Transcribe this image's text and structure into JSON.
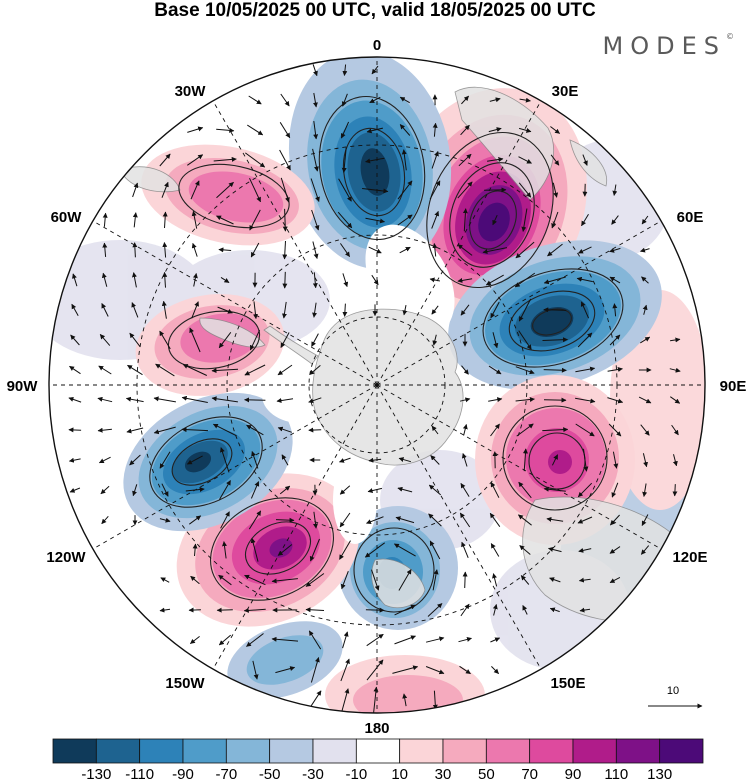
{
  "title": "Base 10/05/2025 00 UTC, valid 18/05/2025 00 UTC",
  "brand": "MODES",
  "brand_mark": "©",
  "longitudes": {
    "north": "0",
    "south": "180",
    "west": "90W",
    "east": "90E",
    "nw1": "30W",
    "nw2": "60W",
    "ne1": "30E",
    "ne2": "60E",
    "sw1": "120W",
    "sw2": "150W",
    "se1": "120E",
    "se2": "150E"
  },
  "vector_reference": "10",
  "colorbar": {
    "colors": [
      "#0f3a5a",
      "#1e6390",
      "#2d82b8",
      "#4f9cc9",
      "#84b6d8",
      "#b5c9e2",
      "#e2e1ee",
      "#ffffff",
      "#fbd5d8",
      "#f5aabe",
      "#ec78ae",
      "#de4a9e",
      "#b01c8a",
      "#7e1187",
      "#4c0a78"
    ],
    "labels": [
      "-130",
      "-110",
      "-90",
      "-70",
      "-50",
      "-30",
      "-10",
      "10",
      "30",
      "50",
      "70",
      "90",
      "110",
      "130"
    ]
  },
  "anomaly_centers": [
    {
      "name": "pos-30E",
      "sign": 1,
      "strength": 125
    },
    {
      "name": "neg-60E",
      "sign": -1,
      "strength": 120
    },
    {
      "name": "neg-0",
      "sign": -1,
      "strength": 110
    },
    {
      "name": "pos-100E",
      "sign": 1,
      "strength": 90
    },
    {
      "name": "neg-150E",
      "sign": -1,
      "strength": 70
    },
    {
      "name": "pos-130W",
      "sign": 1,
      "strength": 110
    },
    {
      "name": "neg-110W",
      "sign": -1,
      "strength": 115
    },
    {
      "name": "pos-75W",
      "sign": 1,
      "strength": 70
    },
    {
      "name": "pos-40W",
      "sign": 1,
      "strength": 70
    },
    {
      "name": "pos-170W",
      "sign": 1,
      "strength": 50
    },
    {
      "name": "neg-165W",
      "sign": -1,
      "strength": 40
    }
  ]
}
